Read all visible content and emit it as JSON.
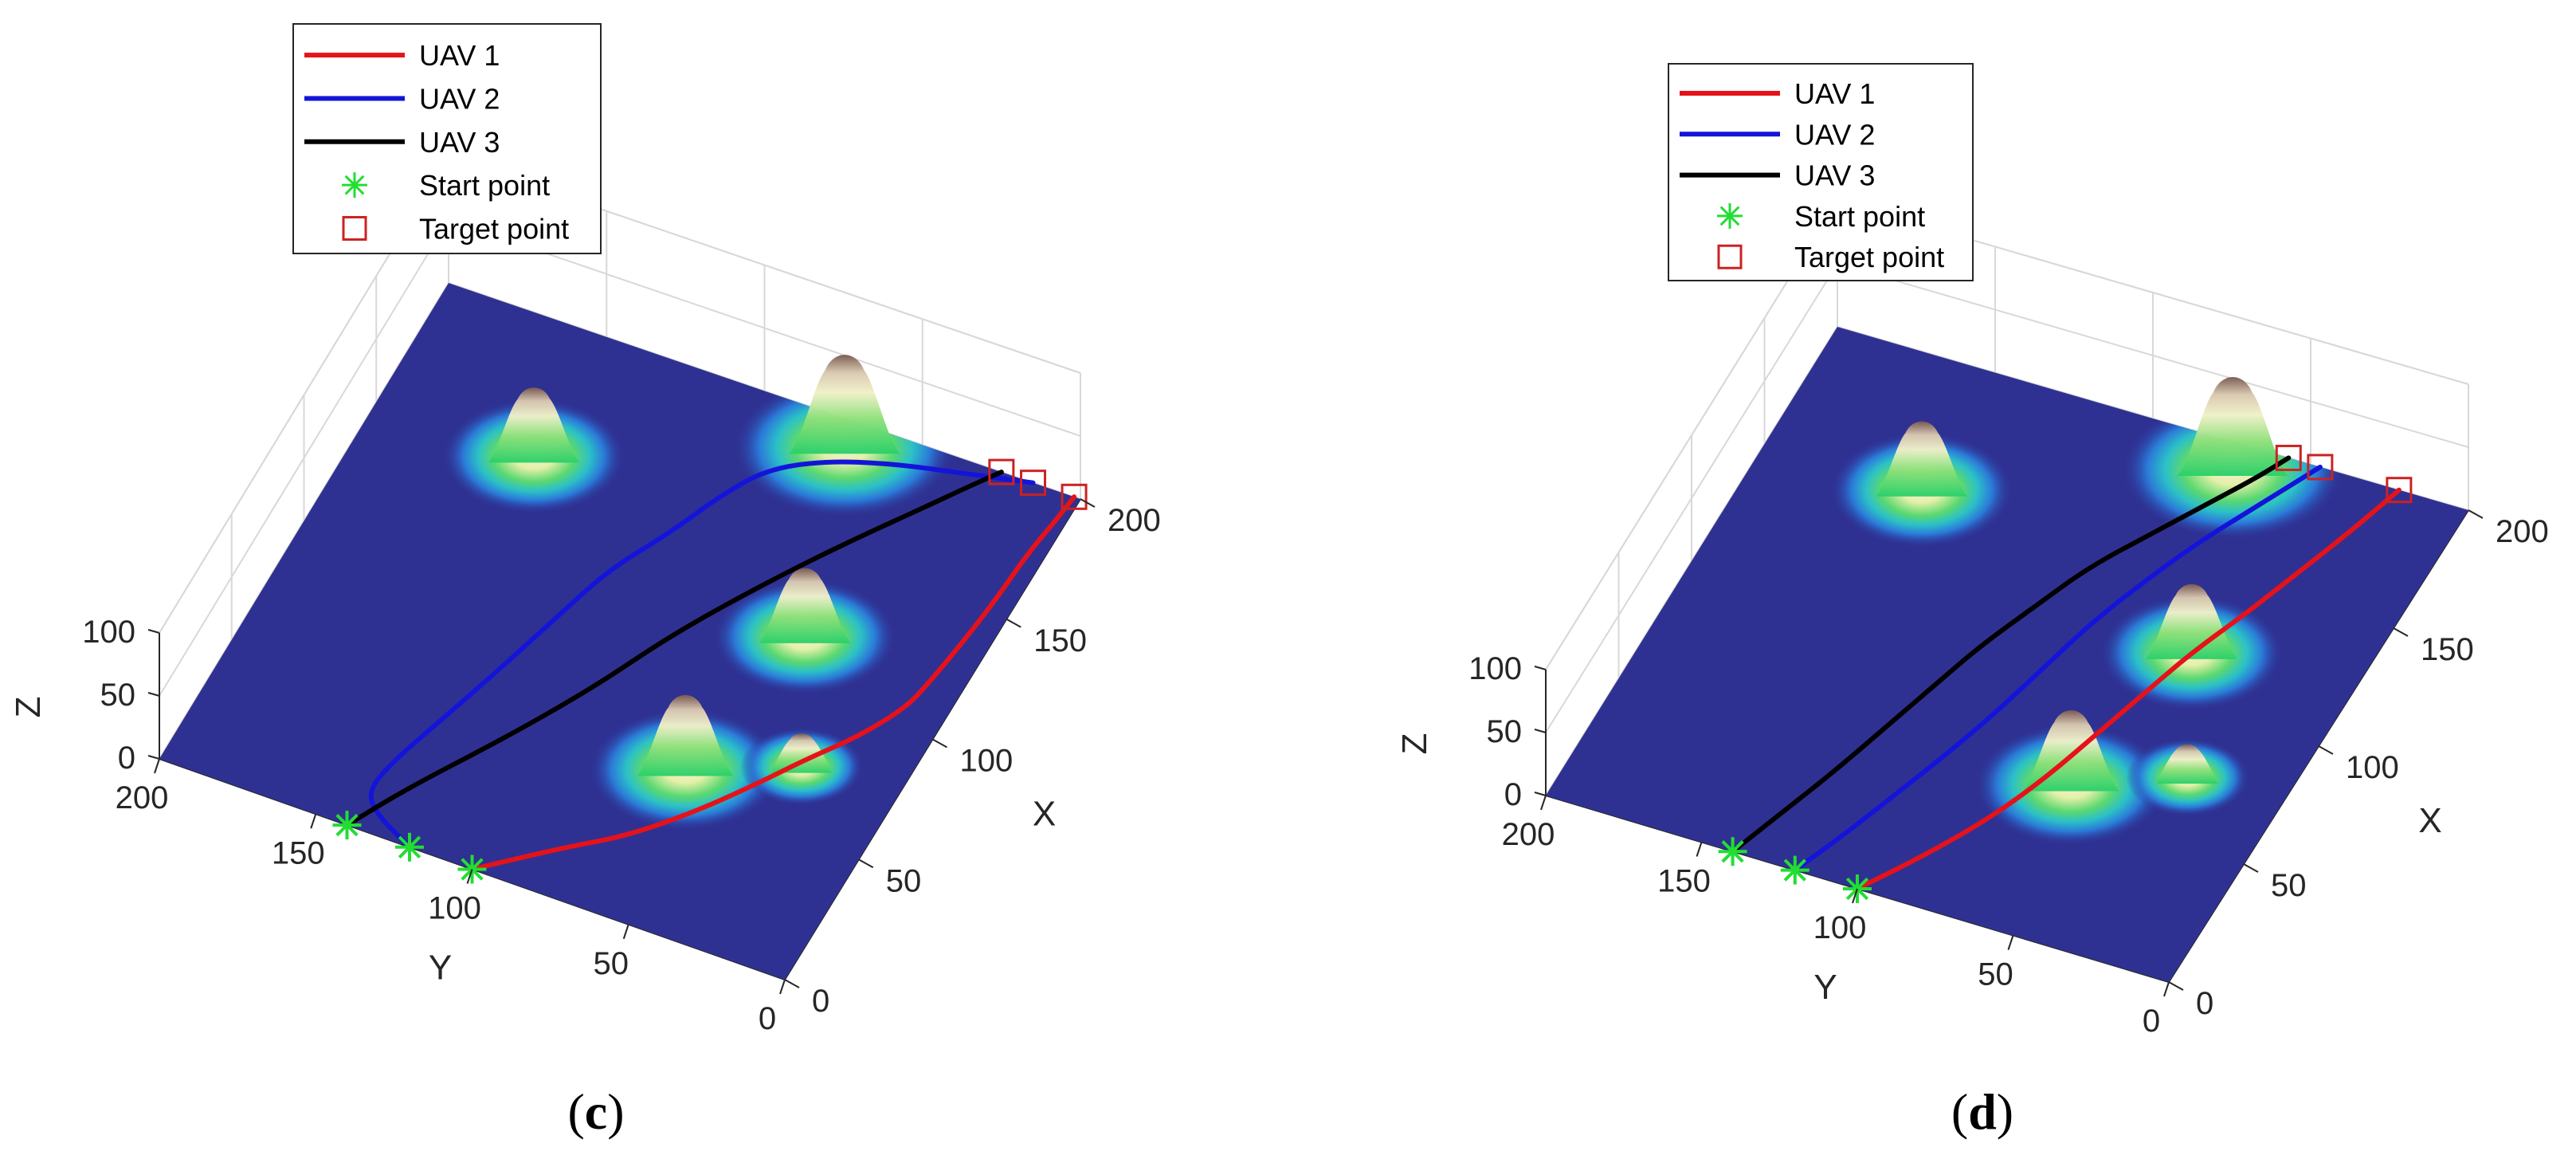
{
  "chart_data": [
    {
      "type": "line",
      "panel_caption": "(c)",
      "xlabel": "X",
      "ylabel": "Y",
      "zlabel": "Z",
      "xlim": [
        0,
        200
      ],
      "ylim": [
        0,
        200
      ],
      "zlim": [
        0,
        100
      ],
      "x_ticks": [
        "0",
        "50",
        "100",
        "150",
        "200"
      ],
      "y_ticks": [
        "0",
        "50",
        "100",
        "150",
        "200"
      ],
      "z_ticks": [
        "0",
        "50",
        "100"
      ],
      "grid": true,
      "legend_position": "top-left",
      "legend": [
        "UAV 1",
        "UAV 2",
        "UAV 3",
        "Start point",
        "Target point"
      ],
      "colors": {
        "UAV 1": "#e6121a",
        "UAV 2": "#1414d9",
        "UAV 3": "#000000",
        "start": "#22dd33",
        "target": "#cc2222"
      },
      "terrain_peaks": [
        {
          "x": 150,
          "y": 150,
          "h": 60
        },
        {
          "x": 190,
          "y": 70,
          "h": 80
        },
        {
          "x": 120,
          "y": 50,
          "h": 60
        },
        {
          "x": 60,
          "y": 60,
          "h": 65
        },
        {
          "x": 75,
          "y": 30,
          "h": 30
        }
      ],
      "series": [
        {
          "name": "UAV 1",
          "points": [
            [
              0,
              100
            ],
            [
              18,
              80
            ],
            [
              30,
              65
            ],
            [
              45,
              52
            ],
            [
              62,
              40
            ],
            [
              78,
              30
            ],
            [
              92,
              20
            ],
            [
              108,
              12
            ],
            [
              120,
              10
            ],
            [
              135,
              8
            ],
            [
              155,
              6
            ],
            [
              175,
              5
            ],
            [
              190,
              3
            ],
            [
              200,
              2
            ]
          ]
        },
        {
          "name": "UAV 2",
          "points": [
            [
              0,
              120
            ],
            [
              8,
              135
            ],
            [
              15,
              140
            ],
            [
              28,
              138
            ],
            [
              48,
              132
            ],
            [
              72,
              125
            ],
            [
              98,
              118
            ],
            [
              120,
              112
            ],
            [
              140,
              102
            ],
            [
              158,
              95
            ],
            [
              173,
              87
            ],
            [
              183,
              73
            ],
            [
              190,
              55
            ],
            [
              195,
              35
            ],
            [
              200,
              15
            ]
          ]
        },
        {
          "name": "UAV 3",
          "points": [
            [
              0,
              140
            ],
            [
              20,
              130
            ],
            [
              50,
              112
            ],
            [
              78,
              97
            ],
            [
              103,
              86
            ],
            [
              125,
              74
            ],
            [
              145,
              62
            ],
            [
              162,
              51
            ],
            [
              178,
              40
            ],
            [
              190,
              32
            ],
            [
              200,
              25
            ]
          ]
        }
      ],
      "start_points": [
        [
          0,
          100
        ],
        [
          0,
          120
        ],
        [
          0,
          140
        ]
      ],
      "target_points": [
        [
          200,
          2
        ],
        [
          200,
          15
        ],
        [
          200,
          25
        ]
      ]
    },
    {
      "type": "line",
      "panel_caption": "(d)",
      "xlabel": "X",
      "ylabel": "Y",
      "zlabel": "Z",
      "xlim": [
        0,
        200
      ],
      "ylim": [
        0,
        200
      ],
      "zlim": [
        0,
        100
      ],
      "x_ticks": [
        "0",
        "50",
        "100",
        "150",
        "200"
      ],
      "y_ticks": [
        "0",
        "50",
        "100",
        "150",
        "200"
      ],
      "z_ticks": [
        "0",
        "50",
        "100"
      ],
      "grid": true,
      "legend_position": "top-left",
      "legend": [
        "UAV 1",
        "UAV 2",
        "UAV 3",
        "Start point",
        "Target point"
      ],
      "colors": {
        "UAV 1": "#e6121a",
        "UAV 2": "#1414d9",
        "UAV 3": "#000000",
        "start": "#22dd33",
        "target": "#cc2222"
      },
      "terrain_peaks": [
        {
          "x": 150,
          "y": 150,
          "h": 60
        },
        {
          "x": 190,
          "y": 70,
          "h": 80
        },
        {
          "x": 120,
          "y": 50,
          "h": 60
        },
        {
          "x": 60,
          "y": 60,
          "h": 65
        },
        {
          "x": 75,
          "y": 30,
          "h": 30
        }
      ],
      "series": [
        {
          "name": "UAV 1",
          "points": [
            [
              0,
              100
            ],
            [
              20,
              87
            ],
            [
              40,
              76
            ],
            [
              60,
              68
            ],
            [
              80,
              62
            ],
            [
              100,
              56
            ],
            [
              120,
              50
            ],
            [
              140,
              42
            ],
            [
              160,
              35
            ],
            [
              180,
              28
            ],
            [
              200,
              22
            ]
          ]
        },
        {
          "name": "UAV 2",
          "points": [
            [
              0,
              120
            ],
            [
              20,
              112
            ],
            [
              40,
              105
            ],
            [
              60,
              98
            ],
            [
              80,
              92
            ],
            [
              100,
              87
            ],
            [
              120,
              82
            ],
            [
              140,
              75
            ],
            [
              160,
              67
            ],
            [
              180,
              57
            ],
            [
              200,
              47
            ]
          ]
        },
        {
          "name": "UAV 3",
          "points": [
            [
              0,
              140
            ],
            [
              20,
              133
            ],
            [
              40,
              126
            ],
            [
              60,
              120
            ],
            [
              80,
              114
            ],
            [
              100,
              108
            ],
            [
              120,
              100
            ],
            [
              140,
              92
            ],
            [
              160,
              80
            ],
            [
              180,
              68
            ],
            [
              190,
              62
            ],
            [
              200,
              57
            ]
          ]
        }
      ],
      "start_points": [
        [
          0,
          100
        ],
        [
          0,
          120
        ],
        [
          0,
          140
        ]
      ],
      "target_points": [
        [
          200,
          22
        ],
        [
          200,
          47
        ],
        [
          200,
          57
        ]
      ]
    }
  ]
}
